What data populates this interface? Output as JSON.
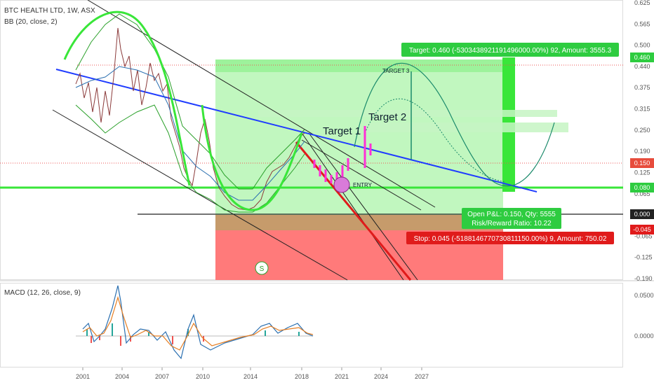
{
  "header": {
    "symbol_line": "BTC HEALTH LTD, 1W, ASX",
    "indicator_line": "BB (20, close, 2)",
    "macd_label": "MACD (12, 26, close, 9)"
  },
  "chart_data": [
    {
      "type": "line",
      "title": "BTC HEALTH LTD, 1W, ASX",
      "xlabel": "",
      "ylabel": "",
      "x_ticks": [
        "2001",
        "2004",
        "2007",
        "2010",
        "2014",
        "2018",
        "2021",
        "2024",
        "2027"
      ],
      "y_ticks": [
        "0.625",
        "0.565",
        "0.500",
        "0.440",
        "0.375",
        "0.315",
        "0.250",
        "0.190",
        "0.125",
        "0.065",
        "0.000",
        "-0.065",
        "-0.125",
        "-0.190"
      ],
      "ylim": [
        -0.19,
        0.625
      ],
      "series": [],
      "price_tags": [
        {
          "text": "0.460",
          "color": "#2ecc40"
        },
        {
          "text": "0.150",
          "color": "#e74c3c"
        },
        {
          "text": "0.080",
          "color": "#2ecc40"
        },
        {
          "text": "0.000",
          "color": "#222222"
        },
        {
          "text": "-0.045",
          "color": "#e01b1b"
        }
      ],
      "annotations": {
        "target_box": "Target: 0.460 (-5303438921191496000.00%) 92, Amount: 3555.3",
        "open_pl": "Open P&L: 0.150, Qty: 5555",
        "risk_reward": "Risk/Reward Ratio: 10.22",
        "stop_box": "Stop: 0.045 (-5188146770730811150.00%) 9, Amount: 750.02",
        "target1": "Target 1",
        "target2": "Target 2",
        "target3": "TARGET 3",
        "entry": "ENTRY",
        "s_marker": "S"
      }
    },
    {
      "type": "line",
      "title": "MACD (12, 26, close, 9)",
      "y_ticks": [
        "0.0500",
        "0.0000"
      ],
      "series": []
    }
  ],
  "colors": {
    "profit_zone": "#8ef08a",
    "loss_zone": "#ff6b6b",
    "bollinger": "#2aa02a",
    "trendline_blue": "#1f3cff",
    "wedge_red": "#e01b1b",
    "projection": "#1b8a6b",
    "target_bar": "#39e639",
    "magenta_bars": "#ff2fd6"
  }
}
